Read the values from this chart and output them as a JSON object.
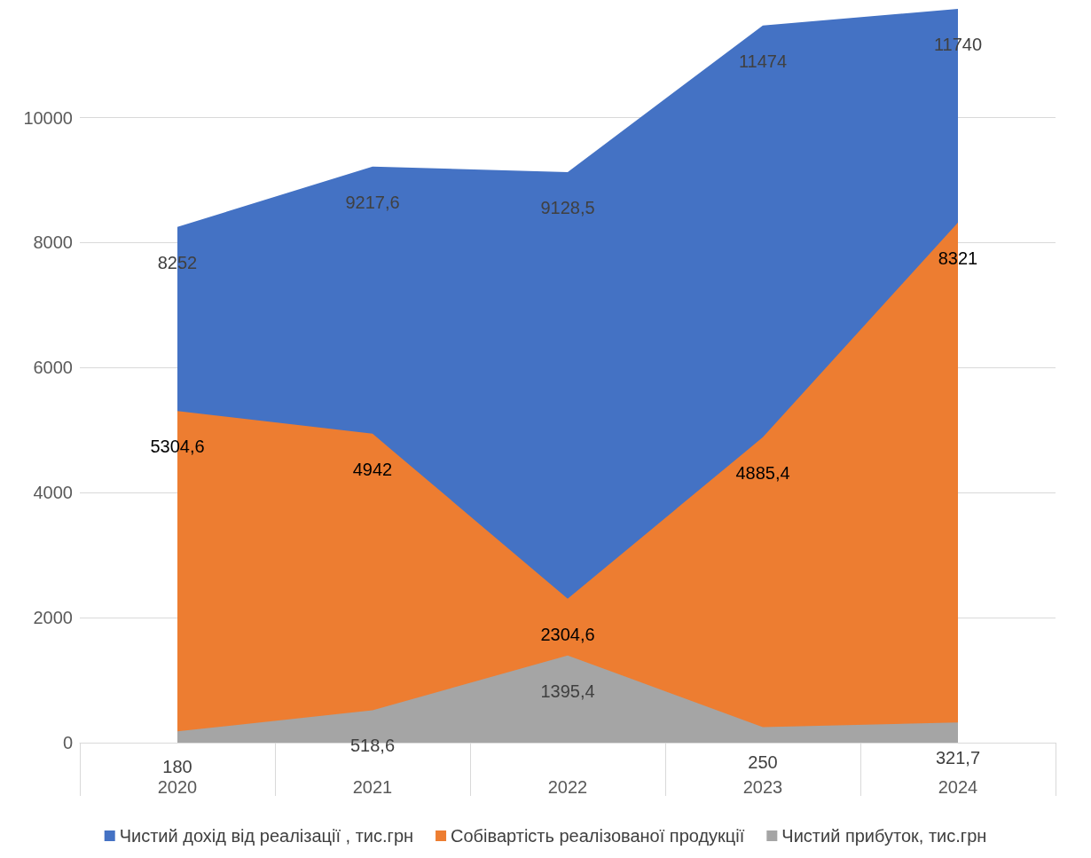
{
  "chart_data": {
    "type": "area",
    "categories": [
      "2020",
      "2021",
      "2022",
      "2023",
      "2024"
    ],
    "series": [
      {
        "name": "Чистий дохід від реалізації , тис.грн",
        "color": "#4472c4",
        "values": [
          8252,
          9217.6,
          9128.5,
          11474,
          11740
        ],
        "value_labels": [
          "8252",
          "9217,6",
          "9128,5",
          "11474",
          "11740"
        ]
      },
      {
        "name": "Собівартість реалізованої продукції",
        "color": "#ed7d31",
        "values": [
          5304.6,
          4942,
          2304.6,
          4885.4,
          8321
        ],
        "value_labels": [
          "5304,6",
          "4942",
          "2304,6",
          "4885,4",
          "8321"
        ]
      },
      {
        "name": "Чистий прибуток, тис.грн",
        "color": "#a5a5a5",
        "values": [
          180,
          518.6,
          1395.4,
          250,
          321.7
        ],
        "value_labels": [
          "180",
          "518,6",
          "1395,4",
          "250",
          "321,7"
        ]
      }
    ],
    "ylim": [
      0,
      11740
    ],
    "yticks": [
      0,
      2000,
      4000,
      6000,
      8000,
      10000
    ],
    "grid": "y",
    "legend": "bottom",
    "marker": "none"
  }
}
